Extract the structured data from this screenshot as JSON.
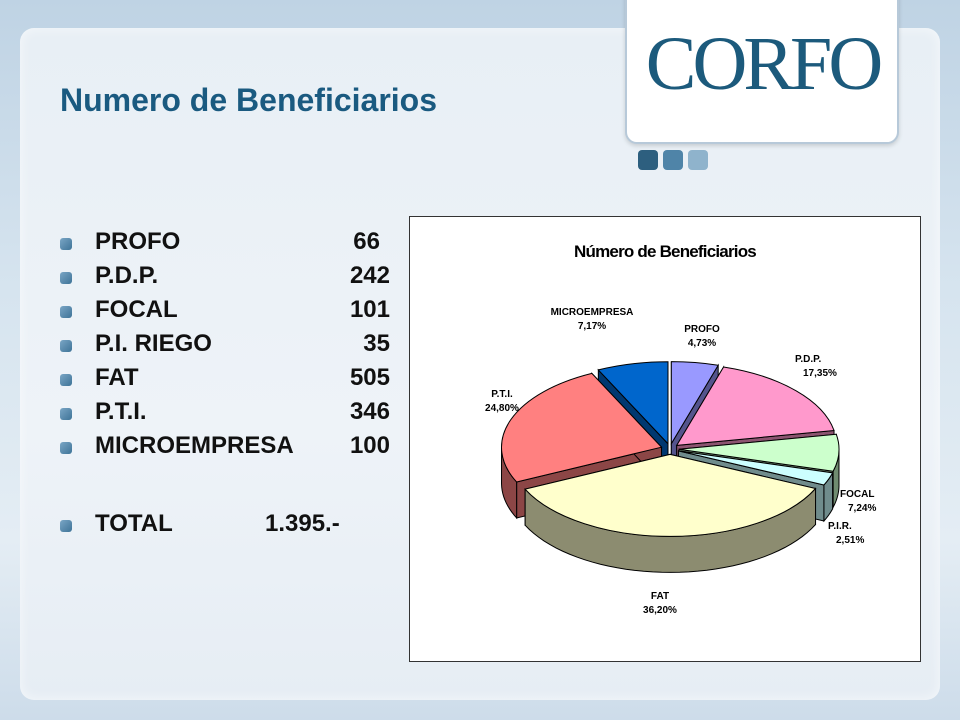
{
  "logo": {
    "text": "CORFO"
  },
  "page": {
    "title": "Numero de Beneficiarios"
  },
  "items": [
    {
      "label": "PROFO",
      "value": "66"
    },
    {
      "label": "P.D.P.",
      "value": "242"
    },
    {
      "label": "FOCAL",
      "value": "101"
    },
    {
      "label": "P.I. RIEGO",
      "value": "35"
    },
    {
      "label": "FAT",
      "value": "505"
    },
    {
      "label": "P.T.I.",
      "value": "346"
    },
    {
      "label": "MICROEMPRESA",
      "value": "100"
    }
  ],
  "total": {
    "label": "TOTAL",
    "value": "1.395.-"
  },
  "colors": {
    "title": "#1a5a80",
    "logo": "#1c5a7c",
    "squares": [
      "#2d5f7f",
      "#4f84a8",
      "#8fb3cc"
    ]
  },
  "chart_data": {
    "type": "pie",
    "title": "Número de Beneficiarios",
    "slices": [
      {
        "name": "PROFO",
        "value": 4.73,
        "label": "4,73%",
        "color": "#9999ff"
      },
      {
        "name": "P.D.P.",
        "value": 17.35,
        "label": "17,35%",
        "color": "#ff99cc"
      },
      {
        "name": "FOCAL",
        "value": 7.24,
        "label": "7,24%",
        "color": "#ccffcc"
      },
      {
        "name": "P.I.R.",
        "value": 2.51,
        "label": "2,51%",
        "color": "#ccffff"
      },
      {
        "name": "FAT",
        "value": 36.2,
        "label": "36,20%",
        "color": "#ffffcc"
      },
      {
        "name": "P.T.I.",
        "value": 24.8,
        "label": "24,80%",
        "color": "#ff8080"
      },
      {
        "name": "MICROEMPRESA",
        "value": 7.17,
        "label": "7,17%",
        "color": "#0066cc"
      }
    ],
    "legend": "none"
  }
}
